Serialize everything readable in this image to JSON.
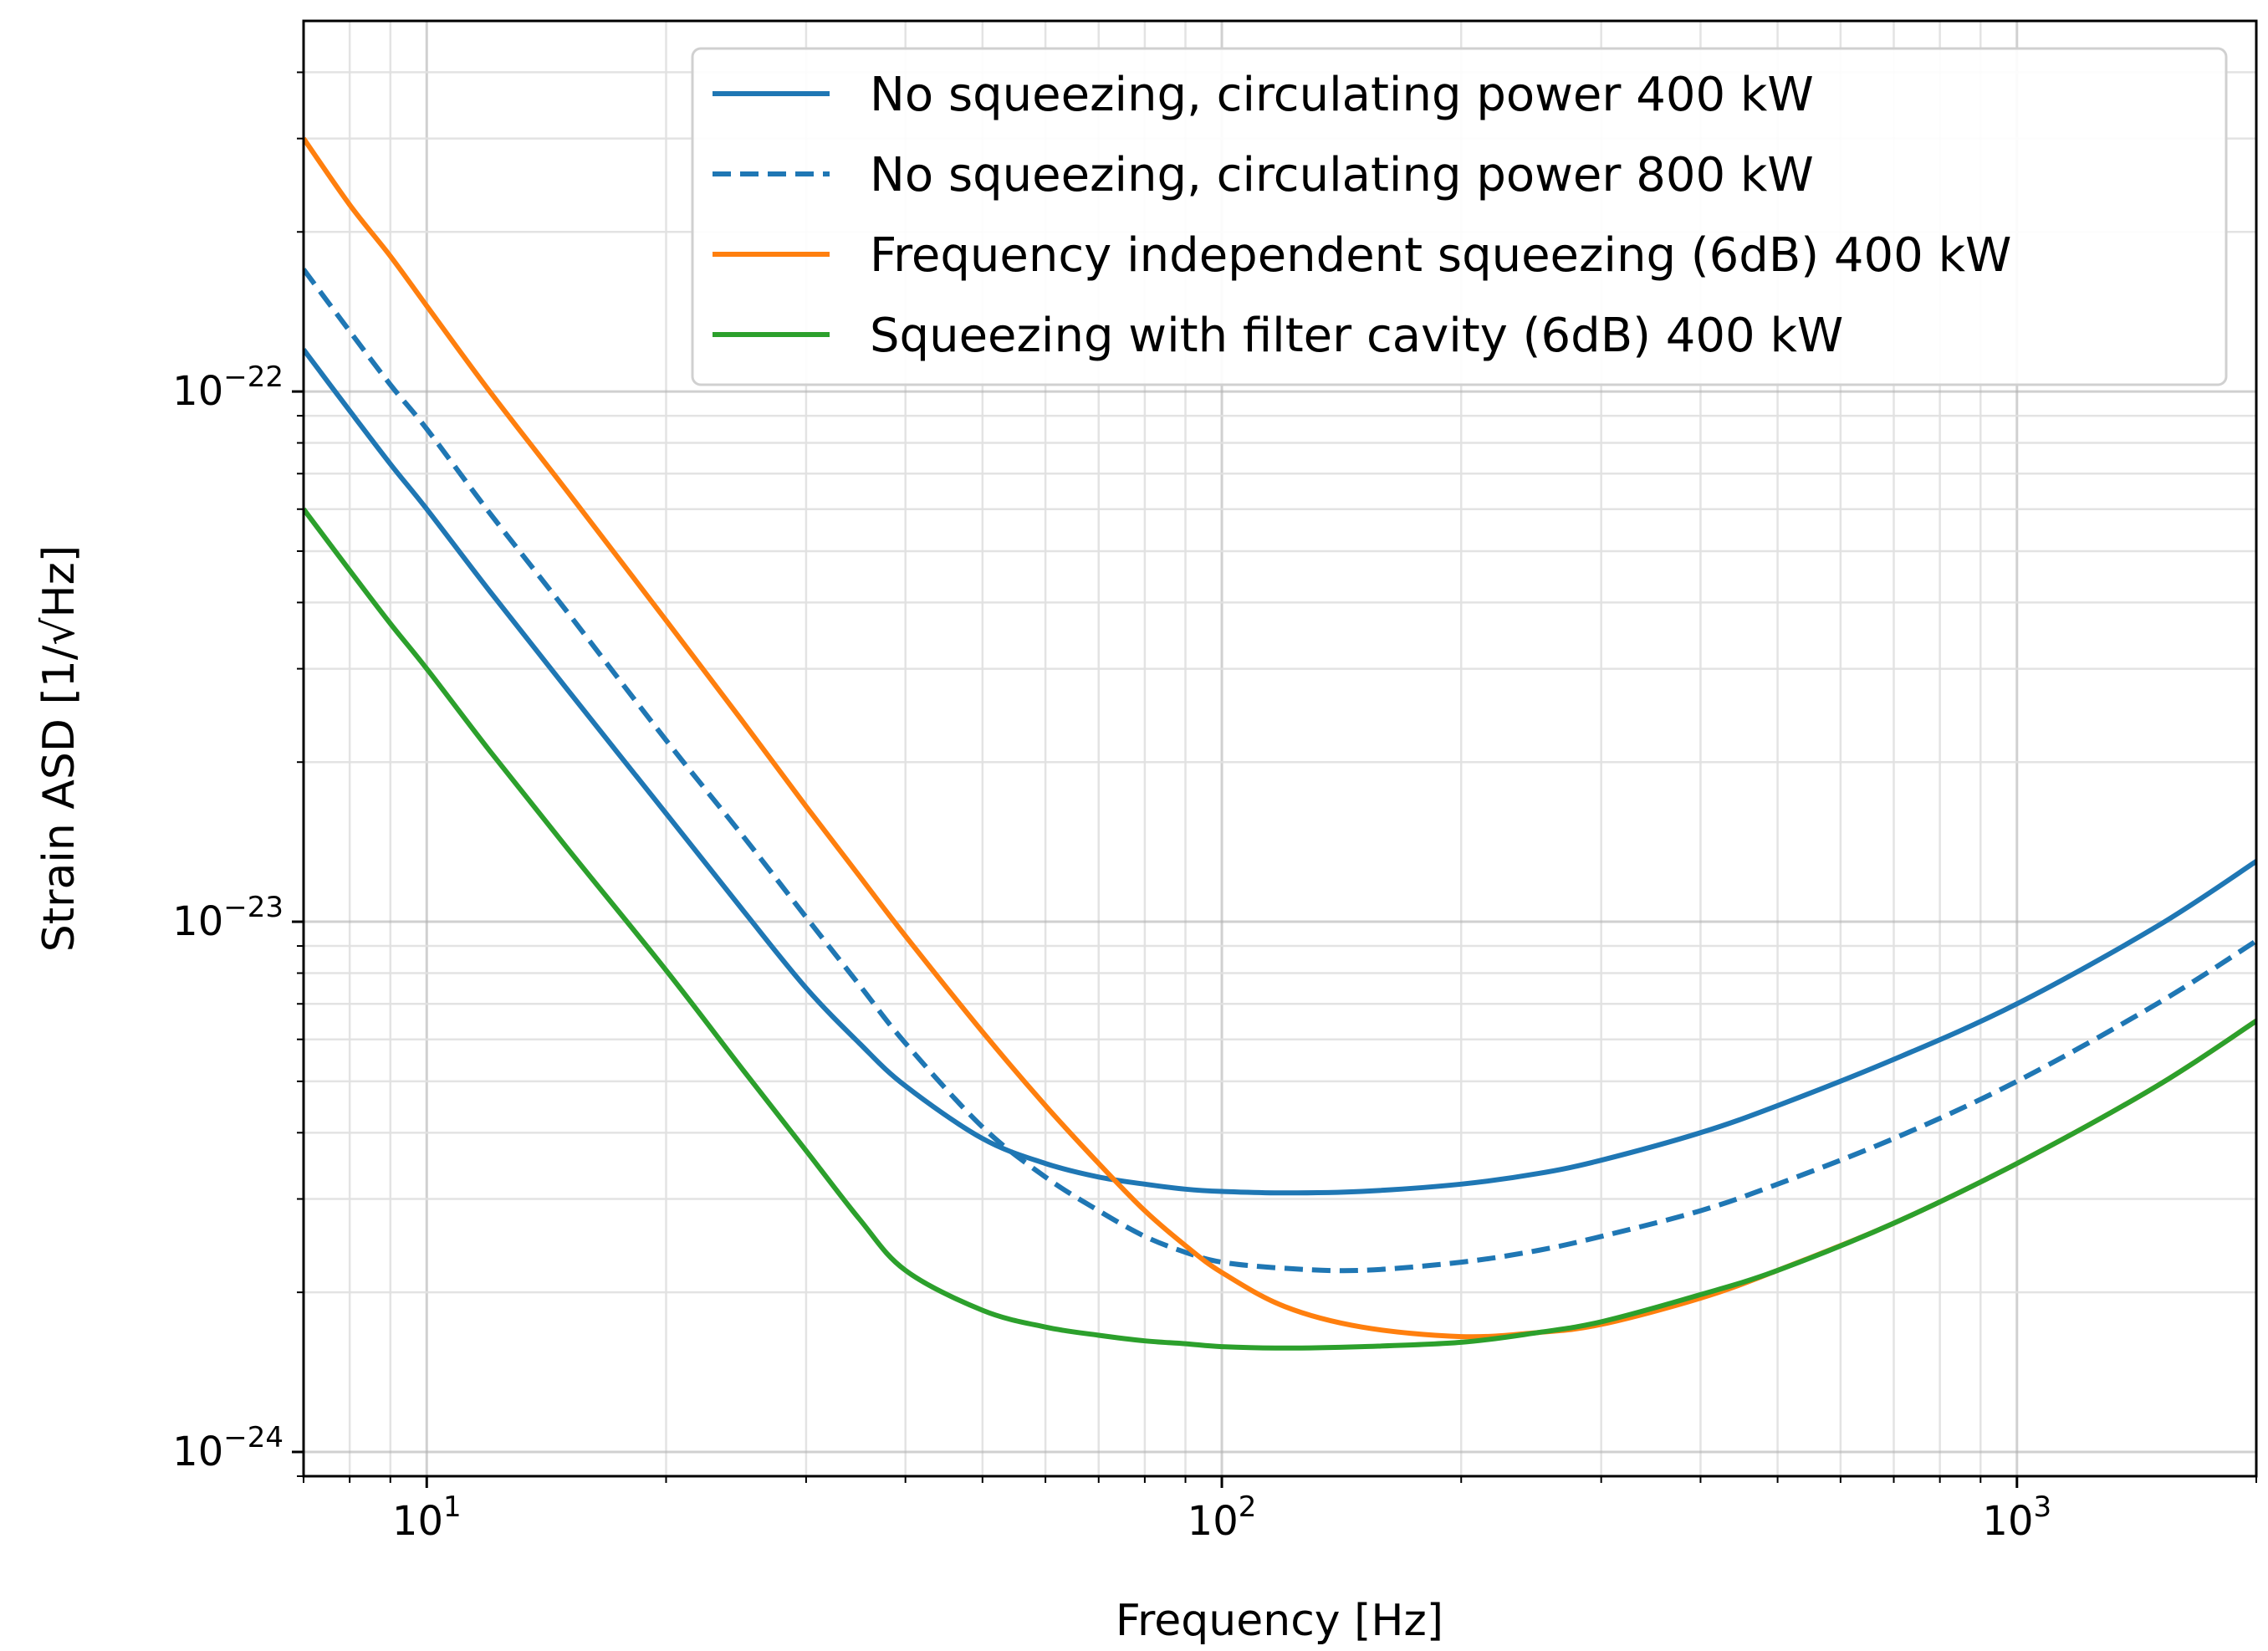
{
  "chart_data": {
    "type": "line",
    "xlabel": "Frequency [Hz]",
    "ylabel": "Strain ASD [1/√Hz]",
    "xscale": "log",
    "yscale": "log",
    "xlim": [
      7,
      2000
    ],
    "ylim": [
      9e-25,
      5e-22
    ],
    "grid": true,
    "legend_position": "top-right",
    "x_ticks": [
      {
        "value": 10,
        "label": "10",
        "exp": "1"
      },
      {
        "value": 100,
        "label": "10",
        "exp": "2"
      },
      {
        "value": 1000,
        "label": "10",
        "exp": "3"
      }
    ],
    "y_ticks": [
      {
        "value": 1e-22,
        "label": "10",
        "exp": "−22"
      },
      {
        "value": 1e-23,
        "label": "10",
        "exp": "−23"
      },
      {
        "value": 1e-24,
        "label": "10",
        "exp": "−24"
      }
    ],
    "x": [
      7,
      8,
      9,
      10,
      12,
      15,
      20,
      25,
      30,
      35,
      40,
      50,
      60,
      70,
      80,
      90,
      100,
      120,
      150,
      200,
      250,
      300,
      400,
      500,
      700,
      1000,
      1500,
      2000
    ],
    "series": [
      {
        "name": "No squeezing, circulating power 400 kW",
        "color": "#1f77b4",
        "dash": "solid",
        "values": [
          1.2e-22,
          9.2e-23,
          7.3e-23,
          6e-23,
          4.2e-23,
          2.75e-23,
          1.6e-23,
          1.05e-23,
          7.5e-24,
          5.9e-24,
          4.9e-24,
          3.9e-24,
          3.5e-24,
          3.3e-24,
          3.2e-24,
          3.13e-24,
          3.1e-24,
          3.08e-24,
          3.1e-24,
          3.2e-24,
          3.35e-24,
          3.55e-24,
          4e-24,
          4.5e-24,
          5.5e-24,
          7e-24,
          9.8e-24,
          1.3e-23
        ]
      },
      {
        "name": "No squeezing, circulating power 800 kW",
        "color": "#1f77b4",
        "dash": "dashed",
        "values": [
          1.7e-22,
          1.3e-22,
          1.03e-22,
          8.5e-23,
          5.9e-23,
          3.85e-23,
          2.2e-23,
          1.45e-23,
          1.02e-23,
          7.6e-24,
          5.9e-24,
          4.1e-24,
          3.3e-24,
          2.85e-24,
          2.55e-24,
          2.38e-24,
          2.28e-24,
          2.22e-24,
          2.2e-24,
          2.28e-24,
          2.4e-24,
          2.55e-24,
          2.85e-24,
          3.2e-24,
          3.9e-24,
          5e-24,
          7e-24,
          9.2e-24
        ]
      },
      {
        "name": "Frequency independent squeezing (6dB) 400 kW",
        "color": "#ff7f0e",
        "dash": "solid",
        "values": [
          3e-22,
          2.25e-22,
          1.8e-22,
          1.45e-22,
          1e-22,
          6.5e-23,
          3.7e-23,
          2.38e-23,
          1.65e-23,
          1.22e-23,
          9.4e-24,
          6.2e-24,
          4.5e-24,
          3.5e-24,
          2.85e-24,
          2.45e-24,
          2.18e-24,
          1.88e-24,
          1.72e-24,
          1.65e-24,
          1.68e-24,
          1.74e-24,
          1.95e-24,
          2.2e-24,
          2.7e-24,
          3.5e-24,
          4.9e-24,
          6.5e-24
        ]
      },
      {
        "name": "Squeezing with filter cavity (6dB) 400 kW",
        "color": "#2ca02c",
        "dash": "solid",
        "values": [
          6e-23,
          4.6e-23,
          3.65e-23,
          3e-23,
          2.1e-23,
          1.38e-23,
          8.1e-24,
          5.25e-24,
          3.7e-24,
          2.75e-24,
          2.2e-24,
          1.85e-24,
          1.72e-24,
          1.66e-24,
          1.62e-24,
          1.6e-24,
          1.58e-24,
          1.57e-24,
          1.58e-24,
          1.61e-24,
          1.68e-24,
          1.76e-24,
          1.98e-24,
          2.2e-24,
          2.7e-24,
          3.5e-24,
          4.9e-24,
          6.5e-24
        ]
      }
    ]
  }
}
